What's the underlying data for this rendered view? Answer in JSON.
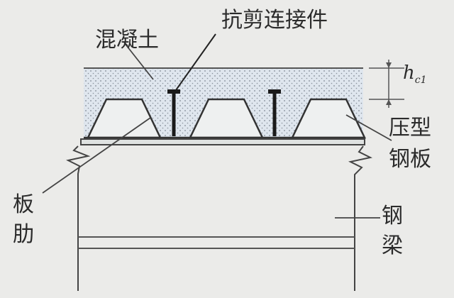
{
  "labels": {
    "concrete": "混凝土",
    "shear_connector": "抗剪连接件",
    "deck_line1": "压型",
    "deck_line2": "钢板",
    "rib_line1": "板",
    "rib_line2": "肋",
    "beam_line1": "钢",
    "beam_line2": "梁",
    "thickness_symbol": "h",
    "thickness_subscript": "c1"
  }
}
